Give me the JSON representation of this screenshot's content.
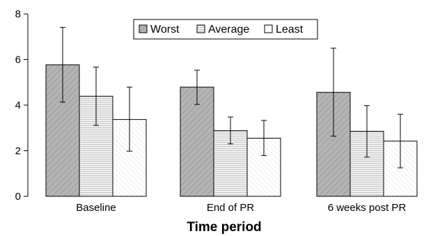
{
  "chart_data": {
    "type": "bar",
    "categories": [
      "Baseline",
      "End of PR",
      "6 weeks post PR"
    ],
    "series": [
      {
        "name": "Worst",
        "values": [
          5.77,
          4.79,
          4.56
        ],
        "error_low": [
          4.13,
          4.03,
          2.64
        ],
        "error_high": [
          7.41,
          5.53,
          6.5
        ],
        "pattern": "dark-diagonal"
      },
      {
        "name": "Average",
        "values": [
          4.39,
          2.88,
          2.85
        ],
        "error_low": [
          3.11,
          2.3,
          1.72
        ],
        "error_high": [
          5.67,
          3.48,
          3.98
        ],
        "pattern": "horizontal-lines"
      },
      {
        "name": "Least",
        "values": [
          3.37,
          2.55,
          2.42
        ],
        "error_low": [
          1.98,
          1.79,
          1.25
        ],
        "error_high": [
          4.79,
          3.33,
          3.6
        ],
        "pattern": "light-diagonal"
      }
    ],
    "title": "",
    "xlabel": "Time period",
    "ylabel": "",
    "ylim": [
      0,
      8
    ],
    "yticks": [
      0,
      2,
      4,
      6,
      8
    ],
    "legend_position": "top-center",
    "grid": false,
    "colors": {
      "worst_fill": "#b4b4b4",
      "average_fill": "#ececec",
      "least_fill": "#fafafa",
      "stroke": "#000000"
    }
  }
}
